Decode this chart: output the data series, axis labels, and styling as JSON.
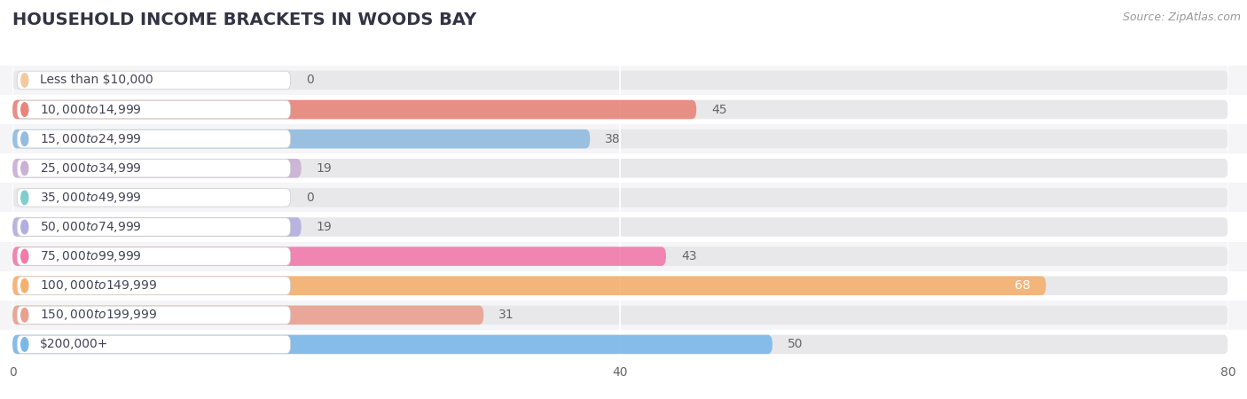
{
  "title": "HOUSEHOLD INCOME BRACKETS IN WOODS BAY",
  "source": "Source: ZipAtlas.com",
  "categories": [
    "Less than $10,000",
    "$10,000 to $14,999",
    "$15,000 to $24,999",
    "$25,000 to $34,999",
    "$35,000 to $49,999",
    "$50,000 to $74,999",
    "$75,000 to $99,999",
    "$100,000 to $149,999",
    "$150,000 to $199,999",
    "$200,000+"
  ],
  "values": [
    0,
    45,
    38,
    19,
    0,
    19,
    43,
    68,
    31,
    50
  ],
  "bar_colors": [
    "#f5c9a0",
    "#e8857a",
    "#92bce0",
    "#c9b0d4",
    "#7ecfcc",
    "#b3aee0",
    "#f07aaa",
    "#f5b06e",
    "#e8a090",
    "#7ab8e8"
  ],
  "xlim": [
    0,
    80
  ],
  "xticks": [
    0,
    40,
    80
  ],
  "bg_color": "#ffffff",
  "bar_bg_color": "#e8e8eb",
  "row_bg_colors": [
    "#f5f5f7",
    "#ffffff"
  ],
  "label_text_color": "#444455",
  "value_color_inside": "#ffffff",
  "value_color_outside": "#666666",
  "title_fontsize": 14,
  "source_fontsize": 9,
  "label_fontsize": 10,
  "value_fontsize": 10,
  "tick_fontsize": 10
}
